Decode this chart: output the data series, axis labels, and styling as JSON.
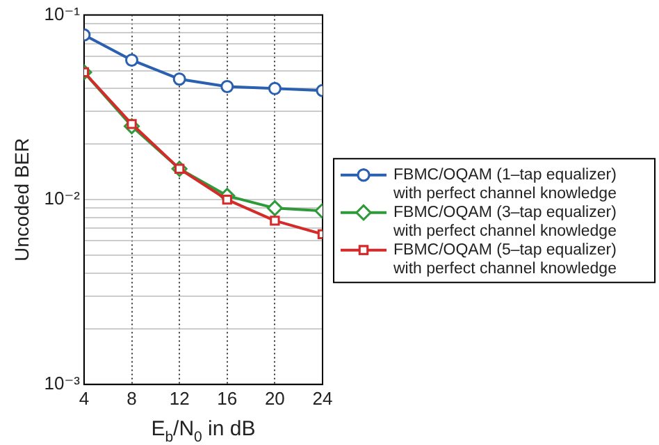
{
  "chart_data": {
    "type": "line",
    "xlabel": "E$_{b}$/N$_{0}$ in dB",
    "ylabel": "Uncoded BER",
    "log": "y",
    "grid": true,
    "legend": "right",
    "line_style": "solid",
    "x": [
      4,
      8,
      12,
      16,
      20,
      24
    ],
    "xlim": [
      4,
      24
    ],
    "xticks": [
      4,
      8,
      12,
      16,
      20,
      24
    ],
    "ylim": [
      0.001,
      0.1
    ],
    "yticks": [
      {
        "value": 0.001,
        "label": "10⁻³"
      },
      {
        "value": 0.002,
        "label": null
      },
      {
        "value": 0.003,
        "label": null
      },
      {
        "value": 0.004,
        "label": null
      },
      {
        "value": 0.005,
        "label": null
      },
      {
        "value": 0.006,
        "label": null
      },
      {
        "value": 0.007,
        "label": null
      },
      {
        "value": 0.008,
        "label": null
      },
      {
        "value": 0.009,
        "label": null
      },
      {
        "value": 0.01,
        "label": "10⁻²"
      },
      {
        "value": 0.02,
        "label": null
      },
      {
        "value": 0.03,
        "label": null
      },
      {
        "value": 0.04,
        "label": null
      },
      {
        "value": 0.05,
        "label": null
      },
      {
        "value": 0.06,
        "label": null
      },
      {
        "value": 0.07,
        "label": null
      },
      {
        "value": 0.08,
        "label": null
      },
      {
        "value": 0.09,
        "label": null
      },
      {
        "value": 0.1,
        "label": "10⁻¹"
      }
    ],
    "series": [
      {
        "name": "FBMC/OQAM (1–tap equalizer) with perfect channel knowledge",
        "color": "#2b5fb0",
        "marker": "circle",
        "values": [
          0.078,
          0.057,
          0.045,
          0.041,
          0.04,
          0.039
        ]
      },
      {
        "name": "FBMC/OQAM (3–tap equalizer) with perfect channel knowledge",
        "color": "#2e9a3a",
        "marker": "diamond",
        "values": [
          0.049,
          0.025,
          0.0147,
          0.0105,
          0.009,
          0.0087
        ]
      },
      {
        "name": "FBMC/OQAM (5–tap equalizer) with perfect channel knowledge",
        "color": "#d42a2a",
        "marker": "square",
        "values": [
          0.049,
          0.0257,
          0.0147,
          0.01,
          0.0077,
          0.0065
        ]
      }
    ]
  }
}
